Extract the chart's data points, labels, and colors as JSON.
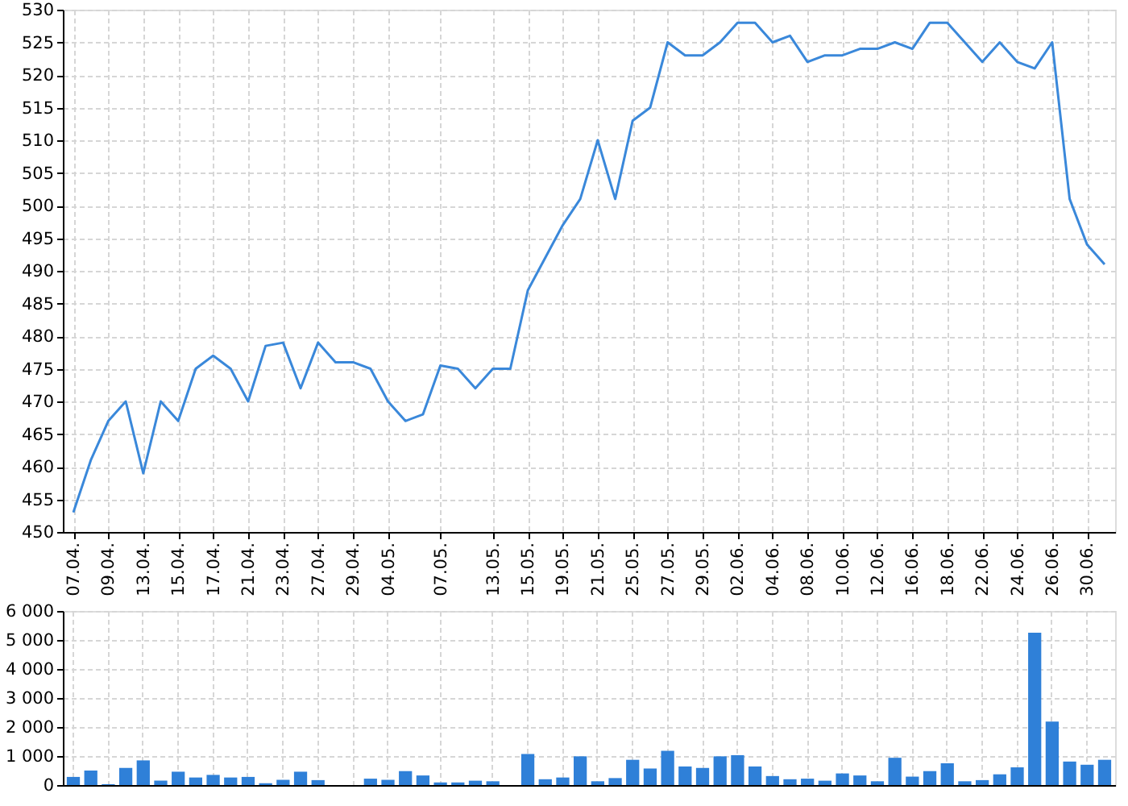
{
  "chart_data": [
    {
      "type": "line",
      "categories": [
        "07.04.",
        null,
        "09.04.",
        null,
        "13.04.",
        null,
        "15.04.",
        null,
        "17.04.",
        null,
        "21.04.",
        null,
        "23.04.",
        null,
        "27.04.",
        null,
        "29.04.",
        null,
        "04.05.",
        null,
        null,
        "07.05.",
        null,
        null,
        "13.05.",
        null,
        "15.05.",
        null,
        "19.05.",
        null,
        "21.05.",
        null,
        "25.05.",
        null,
        "27.05.",
        null,
        "29.05.",
        null,
        "02.06.",
        null,
        "04.06.",
        null,
        "08.06.",
        null,
        "10.06.",
        null,
        "12.06.",
        null,
        "16.06.",
        null,
        "18.06.",
        null,
        "22.06.",
        null,
        "24.06.",
        null,
        "26.06.",
        null,
        "30.06.",
        null
      ],
      "values": [
        453,
        461,
        467,
        470,
        459,
        470,
        467,
        475,
        477,
        475,
        470,
        478.5,
        479,
        472,
        479,
        476,
        476,
        475,
        470,
        467,
        468,
        475.5,
        475,
        472,
        475,
        475,
        487,
        492,
        497,
        501,
        510,
        501,
        513,
        515,
        525,
        523,
        523,
        525,
        528,
        528,
        525,
        526,
        522,
        523,
        523,
        524,
        524,
        525,
        524,
        528,
        528,
        525,
        522,
        525,
        522,
        521,
        525,
        501,
        494,
        491
      ],
      "color": "#3a88da",
      "ylim": [
        450,
        530
      ],
      "yticks": [
        450,
        455,
        460,
        465,
        470,
        475,
        480,
        485,
        490,
        495,
        500,
        505,
        510,
        515,
        520,
        525,
        530
      ],
      "grid": true
    },
    {
      "type": "bar",
      "categories": [
        "07.04.",
        null,
        "09.04.",
        null,
        "13.04.",
        null,
        "15.04.",
        null,
        "17.04.",
        null,
        "21.04.",
        null,
        "23.04.",
        null,
        "27.04.",
        null,
        "29.04.",
        null,
        "04.05.",
        null,
        null,
        "07.05.",
        null,
        null,
        "13.05.",
        null,
        "15.05.",
        null,
        "19.05.",
        null,
        "21.05.",
        null,
        "25.05.",
        null,
        "27.05.",
        null,
        "29.05.",
        null,
        "02.06.",
        null,
        "04.06.",
        null,
        "08.06.",
        null,
        "10.06.",
        null,
        "12.06.",
        null,
        "16.06.",
        null,
        "18.06.",
        null,
        "22.06.",
        null,
        "24.06.",
        null,
        "26.06.",
        null,
        "30.06.",
        null
      ],
      "values": [
        280,
        500,
        30,
        590,
        850,
        150,
        460,
        260,
        350,
        260,
        280,
        60,
        180,
        460,
        170,
        null,
        null,
        220,
        180,
        480,
        330,
        90,
        90,
        150,
        130,
        null,
        1070,
        200,
        260,
        990,
        130,
        240,
        870,
        570,
        1180,
        640,
        590,
        990,
        1030,
        640,
        310,
        200,
        220,
        150,
        400,
        330,
        130,
        940,
        290,
        480,
        750,
        130,
        170,
        370,
        610,
        5250,
        2190,
        810,
        700,
        870
      ],
      "color": "#2f80d8",
      "ylim": [
        0,
        6000
      ],
      "yticks": [
        {
          "value": 0,
          "label": "0"
        },
        {
          "value": 1000,
          "label": "1 000"
        },
        {
          "value": 2000,
          "label": "2 000"
        },
        {
          "value": 3000,
          "label": "3 000"
        },
        {
          "value": 4000,
          "label": "4 000"
        },
        {
          "value": 5000,
          "label": "5 000"
        },
        {
          "value": 6000,
          "label": "6 000"
        }
      ],
      "grid": true,
      "tick_labels": "y"
    }
  ]
}
